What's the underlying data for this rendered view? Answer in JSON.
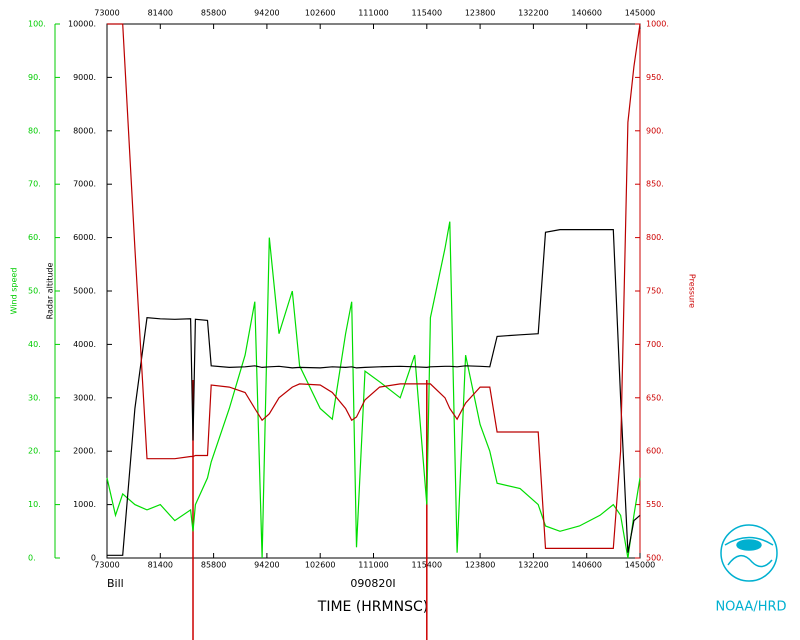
{
  "chart_data": {
    "type": "line",
    "x_label": "TIME (HRMNSC)",
    "storm": "Bill",
    "flight": "090820I",
    "credit": "NOAA/HRD",
    "y_label": "Wind speed",
    "y2_label": "Radar altitude",
    "y3_label": "Pressure",
    "xlim": [
      450,
      890
    ],
    "xticks": [
      {
        "value": 450,
        "label": "73000"
      },
      {
        "value": 494,
        "label": "81400"
      },
      {
        "value": 538,
        "label": "85800"
      },
      {
        "value": 582,
        "label": "94200"
      },
      {
        "value": 626,
        "label": "102600"
      },
      {
        "value": 670,
        "label": "111000"
      },
      {
        "value": 714,
        "label": "115400"
      },
      {
        "value": 758,
        "label": "123800"
      },
      {
        "value": 802,
        "label": "132200"
      },
      {
        "value": 846,
        "label": "140600"
      },
      {
        "value": 890,
        "label": "145000"
      }
    ],
    "ylim": [
      0,
      100
    ],
    "yticks": [
      {
        "value": 0,
        "label": "0."
      },
      {
        "value": 10,
        "label": "10."
      },
      {
        "value": 20,
        "label": "20."
      },
      {
        "value": 30,
        "label": "30."
      },
      {
        "value": 40,
        "label": "40."
      },
      {
        "value": 50,
        "label": "50."
      },
      {
        "value": 60,
        "label": "60."
      },
      {
        "value": 70,
        "label": "70."
      },
      {
        "value": 80,
        "label": "80."
      },
      {
        "value": 90,
        "label": "90."
      },
      {
        "value": 100,
        "label": "100."
      }
    ],
    "y2lim": [
      0,
      10000
    ],
    "y2ticks": [
      0,
      {
        "value": 1000,
        "label": "1000."
      },
      {
        "value": 2000,
        "label": "2000."
      },
      {
        "value": 3000,
        "label": "3000."
      },
      {
        "value": 4000,
        "label": "4000."
      },
      {
        "value": 5000,
        "label": "5000."
      },
      {
        "value": 6000,
        "label": "6000."
      },
      {
        "value": 7000,
        "label": "7000."
      },
      {
        "value": 8000,
        "label": "8000."
      },
      {
        "value": 9000,
        "label": "9000."
      },
      {
        "value": 10000,
        "label": "10000."
      }
    ],
    "y3lim": [
      500,
      1000
    ],
    "y3ticks": [
      {
        "value": 500,
        "label": "500."
      },
      {
        "value": 550,
        "label": "550."
      },
      {
        "value": 600,
        "label": "600."
      },
      {
        "value": 650,
        "label": "650."
      },
      {
        "value": 700,
        "label": "700."
      },
      {
        "value": 750,
        "label": "750."
      },
      {
        "value": 800,
        "label": "800."
      },
      {
        "value": 850,
        "label": "850."
      },
      {
        "value": 900,
        "label": "900."
      },
      {
        "value": 950,
        "label": "950."
      },
      {
        "value": 1000,
        "label": "1000."
      }
    ],
    "markers": [
      521,
      714
    ],
    "marker_color": "#cc0000",
    "x": [
      450,
      457,
      463,
      473,
      483,
      494,
      506,
      519,
      521,
      523,
      533,
      536,
      551,
      564,
      572,
      578,
      584,
      592,
      603,
      609,
      626,
      636,
      647,
      652,
      656,
      663,
      675,
      692,
      704,
      714,
      717,
      729,
      733,
      739,
      746,
      758,
      766,
      772,
      791,
      806,
      812,
      824,
      840,
      857,
      868,
      874,
      880,
      885,
      890
    ],
    "series": [
      {
        "name": "Wind speed",
        "color": "#00dd00",
        "axis": "y",
        "values": [
          15,
          8,
          12,
          10,
          9,
          10,
          7,
          9,
          5,
          10,
          15,
          18,
          28,
          38,
          48,
          0,
          60,
          42,
          50,
          36,
          28,
          26,
          42,
          48,
          2,
          35,
          33,
          30,
          38,
          10,
          45,
          58,
          63,
          1,
          38,
          25,
          20,
          14,
          13,
          10,
          6,
          5,
          6,
          8,
          10,
          8,
          0,
          8,
          15
        ]
      },
      {
        "name": "Radar altitude",
        "color": "#000000",
        "axis": "y2",
        "values": [
          50,
          50,
          50,
          2800,
          4500,
          4480,
          4470,
          4480,
          2200,
          4470,
          4450,
          3600,
          3570,
          3580,
          3600,
          3570,
          3580,
          3590,
          3560,
          3570,
          3560,
          3580,
          3570,
          3580,
          3560,
          3570,
          3580,
          3590,
          3580,
          3570,
          3580,
          3590,
          3590,
          3580,
          3600,
          3590,
          3580,
          4150,
          4180,
          4200,
          6100,
          6150,
          6150,
          6150,
          6150,
          3000,
          100,
          700,
          800
        ]
      },
      {
        "name": "Pressure",
        "color": "#bb0000",
        "axis": "y3",
        "values": [
          1000,
          1000,
          1000,
          790,
          593,
          593,
          593,
          595,
          595,
          596,
          596,
          662,
          660,
          655,
          640,
          629,
          635,
          650,
          660,
          663,
          662,
          655,
          640,
          629,
          632,
          648,
          660,
          663,
          663,
          663,
          663,
          650,
          640,
          630,
          645,
          660,
          660,
          618,
          618,
          618,
          509,
          509,
          509,
          509,
          509,
          600,
          908,
          960,
          1000
        ]
      }
    ]
  }
}
